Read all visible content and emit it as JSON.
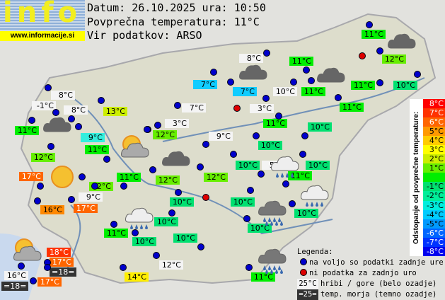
{
  "logo": {
    "text": "info",
    "url": "www.informacije.si"
  },
  "header": {
    "date_line": "Datum: 26.10.2025 ura: 10:50",
    "avg_line": "Povprečna temperatura: 11°C",
    "source_line": "Vir podatkov: ARSO"
  },
  "stations": [
    {
      "t": "8°C",
      "bg": "#f4f4f4",
      "fg": "#000"
    },
    {
      "t": "-1°C",
      "bg": "#f4f4f4",
      "fg": "#000"
    },
    {
      "t": "8°C",
      "bg": "#f4f4f4",
      "fg": "#000"
    },
    {
      "t": "13°C",
      "bg": "#ccee00",
      "fg": "#000"
    },
    {
      "t": "11°C",
      "bg": "#00ee00",
      "fg": "#000"
    },
    {
      "t": "9°C",
      "bg": "#33eedd",
      "fg": "#000"
    },
    {
      "t": "12°C",
      "bg": "#66ee00",
      "fg": "#000"
    },
    {
      "t": "11°C",
      "bg": "#00ee00",
      "fg": "#000"
    },
    {
      "t": "17°C",
      "bg": "#ff6600",
      "fg": "#fff"
    },
    {
      "t": "12°C",
      "bg": "#66ee00",
      "fg": "#000"
    },
    {
      "t": "11°C",
      "bg": "#00ee00",
      "fg": "#000"
    },
    {
      "t": "16°C",
      "bg": "#ff8800",
      "fg": "#000"
    },
    {
      "t": "9°C",
      "bg": "#f4f4f4",
      "fg": "#000"
    },
    {
      "t": "17°C",
      "bg": "#ff6600",
      "fg": "#fff"
    },
    {
      "t": "18°C",
      "bg": "#ff3300",
      "fg": "#fff"
    },
    {
      "t": "17°C",
      "bg": "#ff6600",
      "fg": "#fff"
    },
    {
      "t": "=18=",
      "bg": "#333333",
      "fg": "#fff"
    },
    {
      "t": "16°C",
      "bg": "#f4f4f4",
      "fg": "#000"
    },
    {
      "t": "=18=",
      "bg": "#333333",
      "fg": "#fff"
    },
    {
      "t": "17°C",
      "bg": "#ff6600",
      "fg": "#fff"
    },
    {
      "t": "11°C",
      "bg": "#00ee00",
      "fg": "#000"
    },
    {
      "t": "10°C",
      "bg": "#00e070",
      "fg": "#000"
    },
    {
      "t": "10°C",
      "bg": "#00e070",
      "fg": "#000"
    },
    {
      "t": "10°C",
      "bg": "#00e070",
      "fg": "#000"
    },
    {
      "t": "10°C",
      "bg": "#00e070",
      "fg": "#000"
    },
    {
      "t": "12°C",
      "bg": "#f4f4f4",
      "fg": "#000"
    },
    {
      "t": "14°C",
      "bg": "#ffee00",
      "fg": "#000"
    },
    {
      "t": "11°C",
      "bg": "#00ee00",
      "fg": "#000"
    },
    {
      "t": "10°C",
      "bg": "#00e070",
      "fg": "#000"
    },
    {
      "t": "12°C",
      "bg": "#66ee00",
      "fg": "#000"
    },
    {
      "t": "9°C",
      "bg": "#f4f4f4",
      "fg": "#000"
    },
    {
      "t": "10°C",
      "bg": "#00e070",
      "fg": "#000"
    },
    {
      "t": "10°C",
      "bg": "#00e070",
      "fg": "#000"
    },
    {
      "t": "12°C",
      "bg": "#66ee00",
      "fg": "#000"
    },
    {
      "t": "12°C",
      "bg": "#66ee00",
      "fg": "#000"
    },
    {
      "t": "10°C",
      "bg": "#00e070",
      "fg": "#000"
    },
    {
      "t": "5°C",
      "bg": "#f4f4f4",
      "fg": "#000"
    },
    {
      "t": "10°C",
      "bg": "#00e070",
      "fg": "#000"
    },
    {
      "t": "11°C",
      "bg": "#00ee00",
      "fg": "#000"
    },
    {
      "t": "10°C",
      "bg": "#00e070",
      "fg": "#000"
    },
    {
      "t": "10°C",
      "bg": "#00e070",
      "fg": "#000"
    },
    {
      "t": "8°C",
      "bg": "#f4f4f4",
      "fg": "#000"
    },
    {
      "t": "7°C",
      "bg": "#11ccff",
      "fg": "#000"
    },
    {
      "t": "7°C",
      "bg": "#11ccff",
      "fg": "#000"
    },
    {
      "t": "10°C",
      "bg": "#f4f4f4",
      "fg": "#000"
    },
    {
      "t": "7°C",
      "bg": "#f4f4f4",
      "fg": "#000"
    },
    {
      "t": "3°C",
      "bg": "#f4f4f4",
      "fg": "#000"
    },
    {
      "t": "3°C",
      "bg": "#f4f4f4",
      "fg": "#000"
    },
    {
      "t": "11°C",
      "bg": "#00ee00",
      "fg": "#000"
    },
    {
      "t": "11°C",
      "bg": "#00ee00",
      "fg": "#000"
    },
    {
      "t": "11°C",
      "bg": "#00ee00",
      "fg": "#000"
    },
    {
      "t": "12°C",
      "bg": "#66ee00",
      "fg": "#000"
    },
    {
      "t": "11°C",
      "bg": "#00ee00",
      "fg": "#000"
    },
    {
      "t": "11°C",
      "bg": "#00ee00",
      "fg": "#000"
    },
    {
      "t": "10°C",
      "bg": "#00e070",
      "fg": "#000"
    },
    {
      "t": "11°C",
      "bg": "#00ee00",
      "fg": "#000"
    }
  ],
  "weather_icons": [
    "cloudy",
    "partly-cloudy",
    "sunny",
    "cloudy",
    "cloudy",
    "cloudy",
    "cloudy",
    "light-rain",
    "light-rain",
    "heavy-rain",
    "light-rain",
    "partly-cloudy",
    "heavy-rain"
  ],
  "scale": {
    "title": "Odstopanje od povprečne temperature:",
    "cells": [
      {
        "t": "8°C",
        "bg": "#ff0000",
        "fg": "#fff"
      },
      {
        "t": "7°C",
        "bg": "#ff3300",
        "fg": "#fff"
      },
      {
        "t": "6°C",
        "bg": "#ff6600",
        "fg": "#fff"
      },
      {
        "t": "5°C",
        "bg": "#ff9900",
        "fg": "#000"
      },
      {
        "t": "4°C",
        "bg": "#ffcc00",
        "fg": "#000"
      },
      {
        "t": "3°C",
        "bg": "#ffff00",
        "fg": "#000"
      },
      {
        "t": "2°C",
        "bg": "#ccee00",
        "fg": "#000"
      },
      {
        "t": "1°C",
        "bg": "#66ee00",
        "fg": "#000"
      },
      {
        "t": "",
        "bg": "#00ee00",
        "fg": "#000"
      },
      {
        "t": "-1°C",
        "bg": "#00e070",
        "fg": "#000"
      },
      {
        "t": "-2°C",
        "bg": "#00ee99",
        "fg": "#000"
      },
      {
        "t": "-3°C",
        "bg": "#00eedd",
        "fg": "#000"
      },
      {
        "t": "-4°C",
        "bg": "#00ccff",
        "fg": "#000"
      },
      {
        "t": "-5°C",
        "bg": "#0099ff",
        "fg": "#000"
      },
      {
        "t": "-6°C",
        "bg": "#0066ff",
        "fg": "#fff"
      },
      {
        "t": "-7°C",
        "bg": "#0033ff",
        "fg": "#fff"
      },
      {
        "t": "-8°C",
        "bg": "#0000ee",
        "fg": "#fff"
      }
    ]
  },
  "legend": {
    "title": "Legenda:",
    "blue": "na voljo so podatki zadnje ure",
    "red": "ni podatka za zadnjo uro",
    "hill_sample": "25°C",
    "hill": "hribi / gore (belo ozadje)",
    "sea_sample": "=25=",
    "sea": "temp. morja (temno ozadje)",
    "blue_color": "#0000cc",
    "red_color": "#dd0000"
  }
}
